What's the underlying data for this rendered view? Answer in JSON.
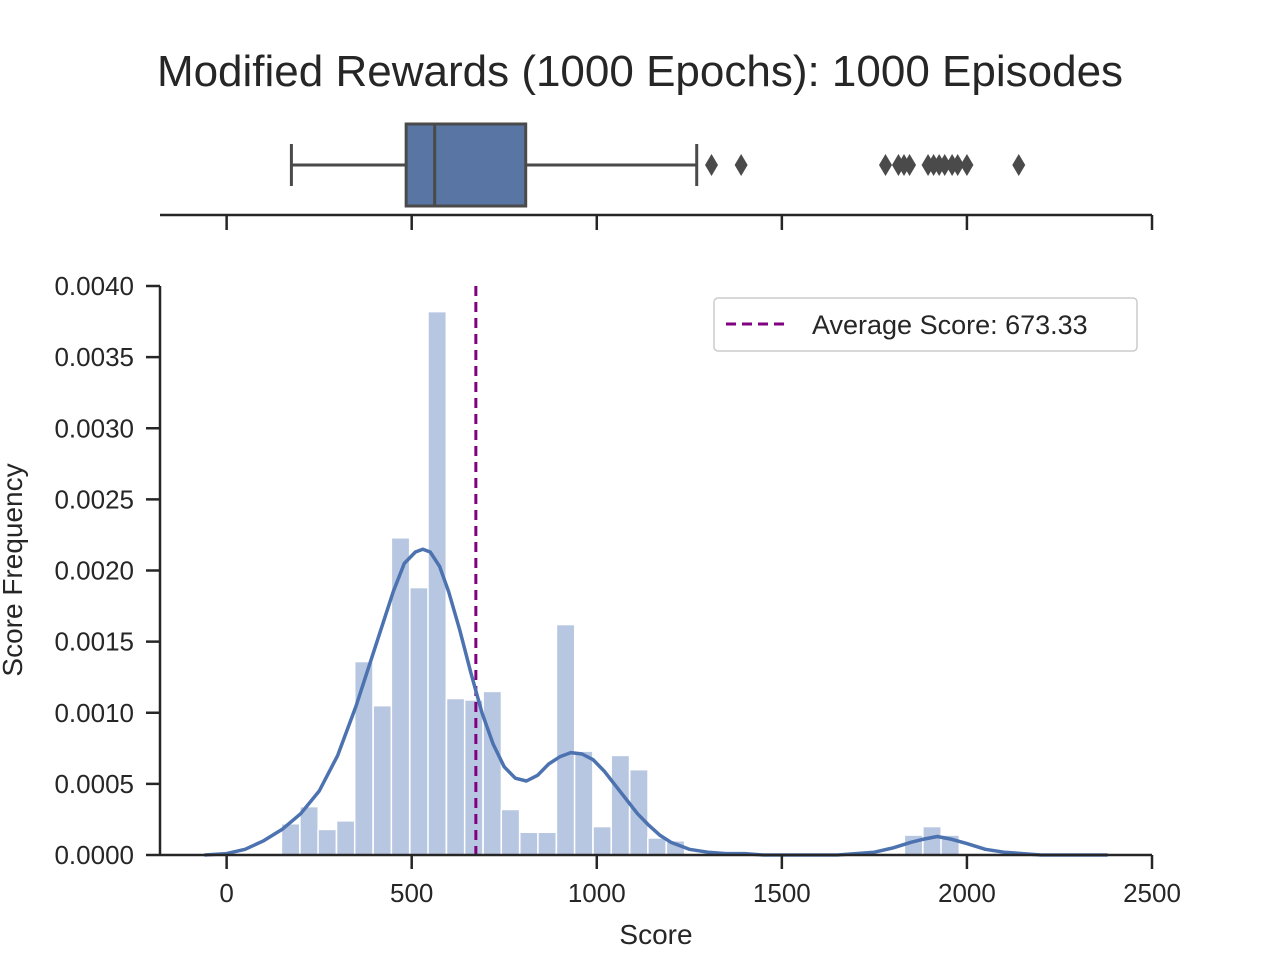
{
  "chart_data": [
    {
      "type": "boxplot",
      "title": "Modified Rewards (1000 Epochs): 1000 Episodes",
      "xlim": [
        -180,
        2500
      ],
      "whisker_low": 175,
      "q1": 485,
      "median": 562,
      "q3": 808,
      "whisker_high": 1270,
      "outliers": [
        1310,
        1390,
        1780,
        1815,
        1830,
        1845,
        1895,
        1910,
        1925,
        1940,
        1960,
        1975,
        2000,
        2140
      ],
      "color": "#5975a4",
      "edge_color": "#4a4a4a"
    },
    {
      "type": "histogram",
      "xlabel": "Score",
      "ylabel": "Score Frequency",
      "xlim": [
        -180,
        2500
      ],
      "ylim": [
        0,
        0.004
      ],
      "xticks": [
        0,
        500,
        1000,
        1500,
        2000,
        2500
      ],
      "yticks": [
        0.0,
        0.0005,
        0.001,
        0.0015,
        0.002,
        0.0025,
        0.003,
        0.0035,
        0.004
      ],
      "ytick_labels": [
        "0.0000",
        "0.0005",
        "0.0010",
        "0.0015",
        "0.0020",
        "0.0025",
        "0.0030",
        "0.0035",
        "0.0040"
      ],
      "bin_width": 49.5,
      "bins": [
        {
          "x0": 148,
          "y": 0.00022
        },
        {
          "x0": 198,
          "y": 0.00034
        },
        {
          "x0": 247,
          "y": 0.00018
        },
        {
          "x0": 297,
          "y": 0.00024
        },
        {
          "x0": 346,
          "y": 0.00136
        },
        {
          "x0": 396,
          "y": 0.00105
        },
        {
          "x0": 445,
          "y": 0.00223
        },
        {
          "x0": 495,
          "y": 0.00188
        },
        {
          "x0": 544,
          "y": 0.00382
        },
        {
          "x0": 594,
          "y": 0.0011
        },
        {
          "x0": 643,
          "y": 0.00109
        },
        {
          "x0": 693,
          "y": 0.00115
        },
        {
          "x0": 742,
          "y": 0.00032
        },
        {
          "x0": 792,
          "y": 0.00016
        },
        {
          "x0": 841,
          "y": 0.00016
        },
        {
          "x0": 891,
          "y": 0.00162
        },
        {
          "x0": 940,
          "y": 0.00073
        },
        {
          "x0": 990,
          "y": 0.0002
        },
        {
          "x0": 1039,
          "y": 0.0007
        },
        {
          "x0": 1089,
          "y": 0.0006
        },
        {
          "x0": 1138,
          "y": 0.00012
        },
        {
          "x0": 1188,
          "y": 0.0001
        },
        {
          "x0": 1237,
          "y": 0
        },
        {
          "x0": 1831,
          "y": 0.00014
        },
        {
          "x0": 1881,
          "y": 0.0002
        },
        {
          "x0": 1930,
          "y": 0.00014
        }
      ],
      "kde": {
        "x": [
          -60,
          0,
          50,
          100,
          150,
          200,
          250,
          300,
          350,
          400,
          450,
          480,
          510,
          530,
          550,
          575,
          600,
          630,
          660,
          690,
          720,
          750,
          780,
          810,
          840,
          870,
          900,
          930,
          960,
          990,
          1020,
          1050,
          1080,
          1110,
          1140,
          1170,
          1200,
          1250,
          1300,
          1350,
          1400,
          1450,
          1500,
          1550,
          1600,
          1650,
          1700,
          1750,
          1800,
          1850,
          1880,
          1920,
          1960,
          2000,
          2050,
          2100,
          2150,
          2200,
          2250,
          2300,
          2380
        ],
        "y": [
          0.0,
          1e-05,
          4e-05,
          0.0001,
          0.00018,
          0.00029,
          0.00045,
          0.0007,
          0.00105,
          0.00145,
          0.00185,
          0.00205,
          0.00213,
          0.00215,
          0.00213,
          0.00203,
          0.00185,
          0.00158,
          0.00128,
          0.001,
          0.00078,
          0.00062,
          0.00054,
          0.00052,
          0.00056,
          0.00064,
          0.00069,
          0.00072,
          0.00071,
          0.00067,
          0.00059,
          0.00049,
          0.00039,
          0.00029,
          0.00021,
          0.00014,
          9e-05,
          4e-05,
          2e-05,
          1e-05,
          1e-05,
          0.0,
          0.0,
          0.0,
          0.0,
          0.0,
          1e-05,
          2e-05,
          5e-05,
          9e-05,
          0.00011,
          0.00013,
          0.00011,
          8e-05,
          4e-05,
          2e-05,
          1e-05,
          0.0,
          0.0,
          0.0,
          0.0
        ]
      },
      "mean_line": {
        "x": 673.33,
        "color": "#800080",
        "style": "dashed"
      },
      "legend": {
        "label": "Average Score: 673.33",
        "placement": "top-right"
      },
      "hist_color": "#b8c7e1",
      "kde_color": "#4c72b0"
    }
  ]
}
